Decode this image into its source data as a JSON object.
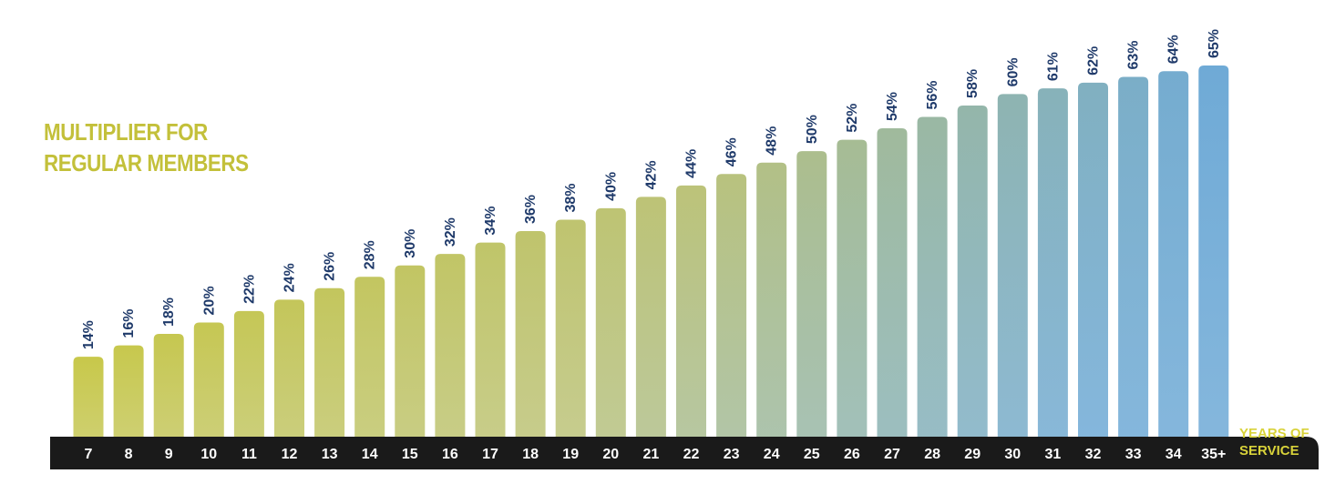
{
  "chart_data": {
    "type": "bar",
    "title_lines": [
      "MULTIPLIER FOR",
      "REGULAR MEMBERS"
    ],
    "xlabel_lines": [
      "YEARS OF",
      "SERVICE"
    ],
    "ylabel": "",
    "categories": [
      "7",
      "8",
      "9",
      "10",
      "11",
      "12",
      "13",
      "14",
      "15",
      "16",
      "17",
      "18",
      "19",
      "20",
      "21",
      "22",
      "23",
      "24",
      "25",
      "26",
      "27",
      "28",
      "29",
      "30",
      "31",
      "32",
      "33",
      "34",
      "35+"
    ],
    "values": [
      14,
      16,
      18,
      20,
      22,
      24,
      26,
      28,
      30,
      32,
      34,
      36,
      38,
      40,
      42,
      44,
      46,
      48,
      50,
      52,
      54,
      56,
      58,
      60,
      61,
      62,
      63,
      64,
      65
    ],
    "value_labels": [
      "14%",
      "16%",
      "18%",
      "20%",
      "22%",
      "24%",
      "26%",
      "28%",
      "30%",
      "32%",
      "34%",
      "36%",
      "38%",
      "40%",
      "42%",
      "44%",
      "46%",
      "48%",
      "50%",
      "52%",
      "54%",
      "56%",
      "58%",
      "60%",
      "61%",
      "62%",
      "63%",
      "64%",
      "65%"
    ],
    "ylim": [
      0,
      65
    ],
    "grid": false,
    "legend": "none",
    "colors": {
      "bar_start": "#c8c84a",
      "bar_mid": "#bcc37a",
      "bar_end": "#6faad6",
      "value_label": "#1f3a6a",
      "axis_band": "#1a1a1a",
      "tick_label": "#ffffff",
      "title": "#c3c03a",
      "axis_label": "#d8d23a"
    }
  }
}
